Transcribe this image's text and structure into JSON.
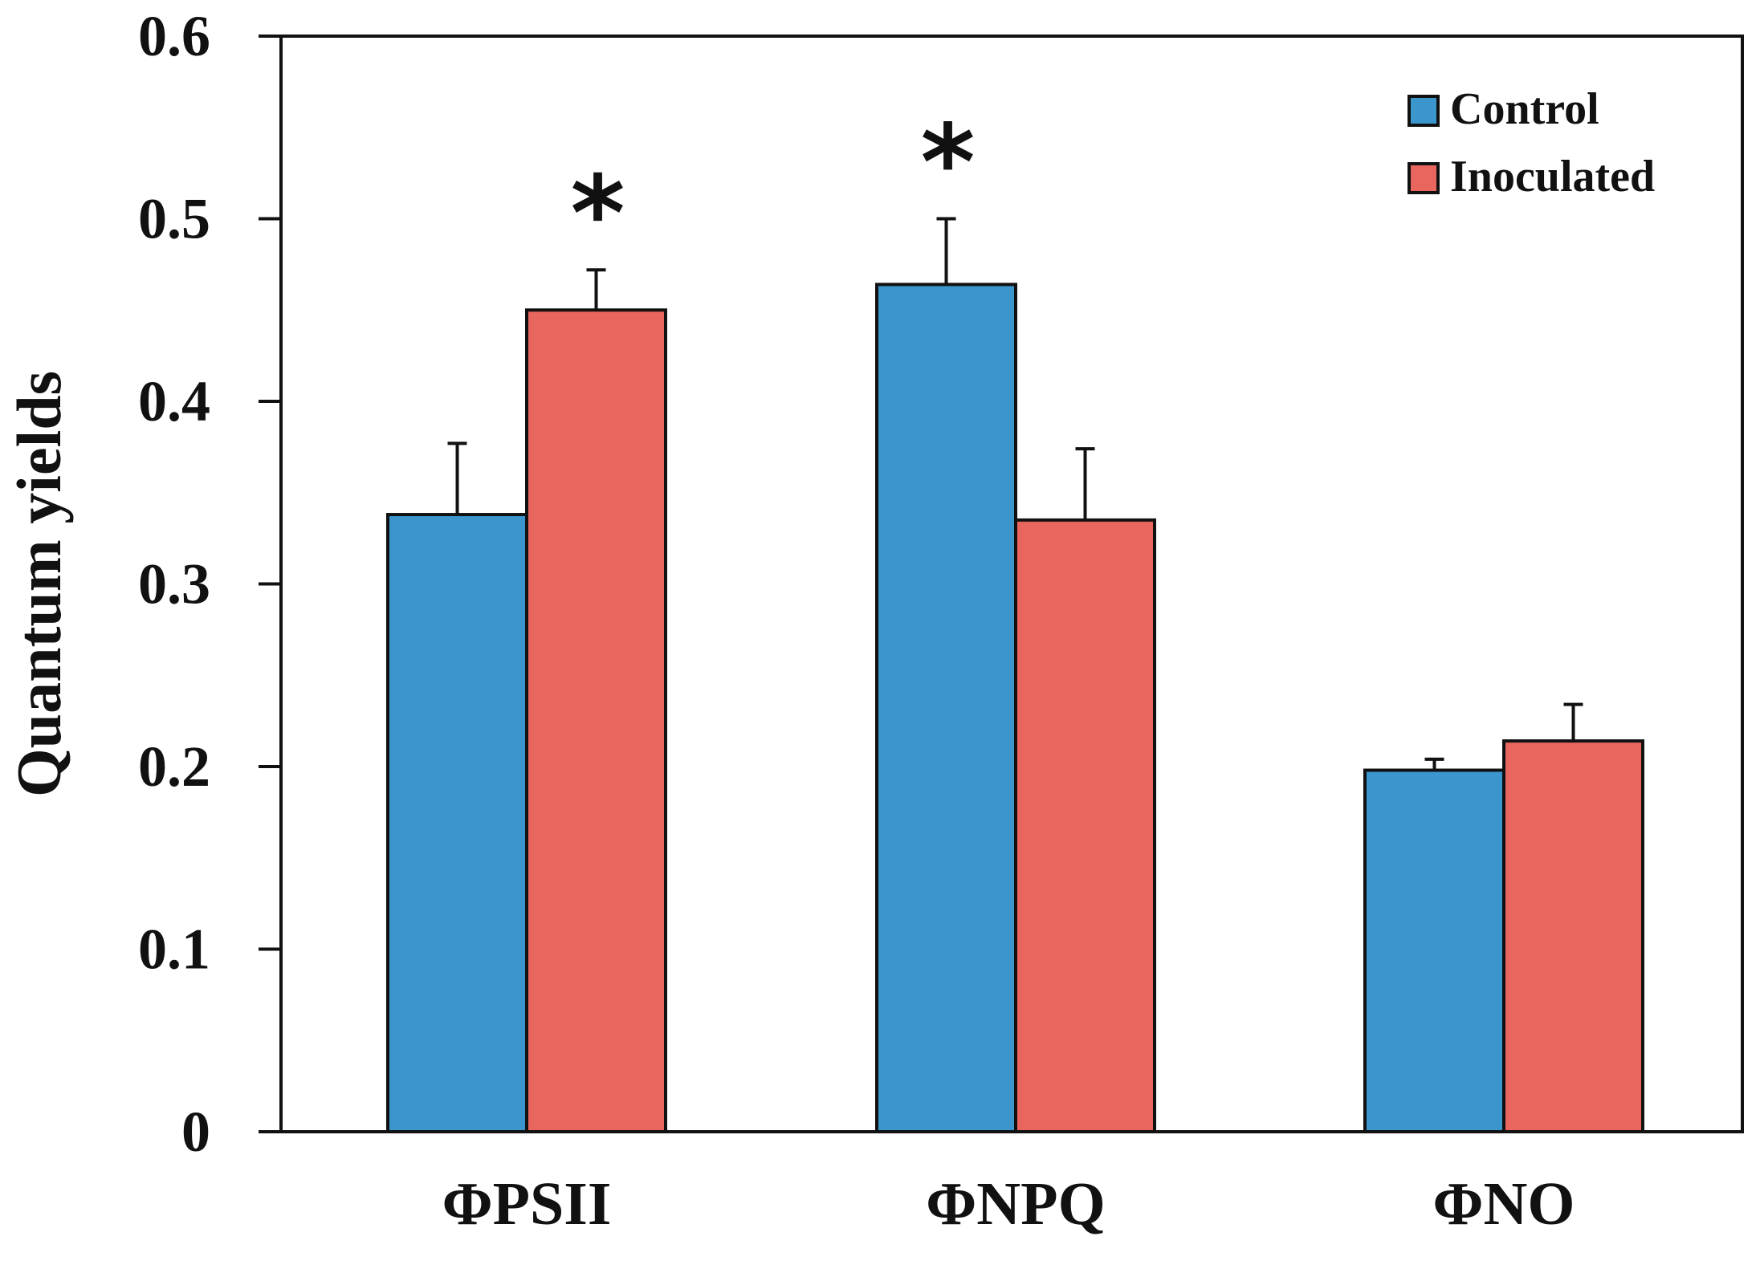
{
  "chart_data": {
    "type": "bar",
    "title": "",
    "xlabel": "",
    "ylabel": "Quantum yields",
    "ylim": [
      0,
      0.6
    ],
    "yticks": [
      "0",
      "0.1",
      "0.2",
      "0.3",
      "0.4",
      "0.5",
      "0.6"
    ],
    "categories": [
      "ΦPSII",
      "ΦNPQ",
      "ΦNO"
    ],
    "series": [
      {
        "name": "Control",
        "color": "#3a96cc",
        "values": [
          0.338,
          0.464,
          0.198
        ],
        "errors": [
          0.039,
          0.036,
          0.006
        ]
      },
      {
        "name": "Inoculated",
        "color": "#e8665e",
        "values": [
          0.45,
          0.335,
          0.214
        ],
        "errors": [
          0.022,
          0.039,
          0.02
        ]
      }
    ],
    "significance": [
      {
        "category": "ΦPSII",
        "series": "Inoculated",
        "mark": "*"
      },
      {
        "category": "ΦNPQ",
        "series": "Control",
        "mark": "*"
      }
    ],
    "legend_position": "top-right",
    "grid": false
  }
}
